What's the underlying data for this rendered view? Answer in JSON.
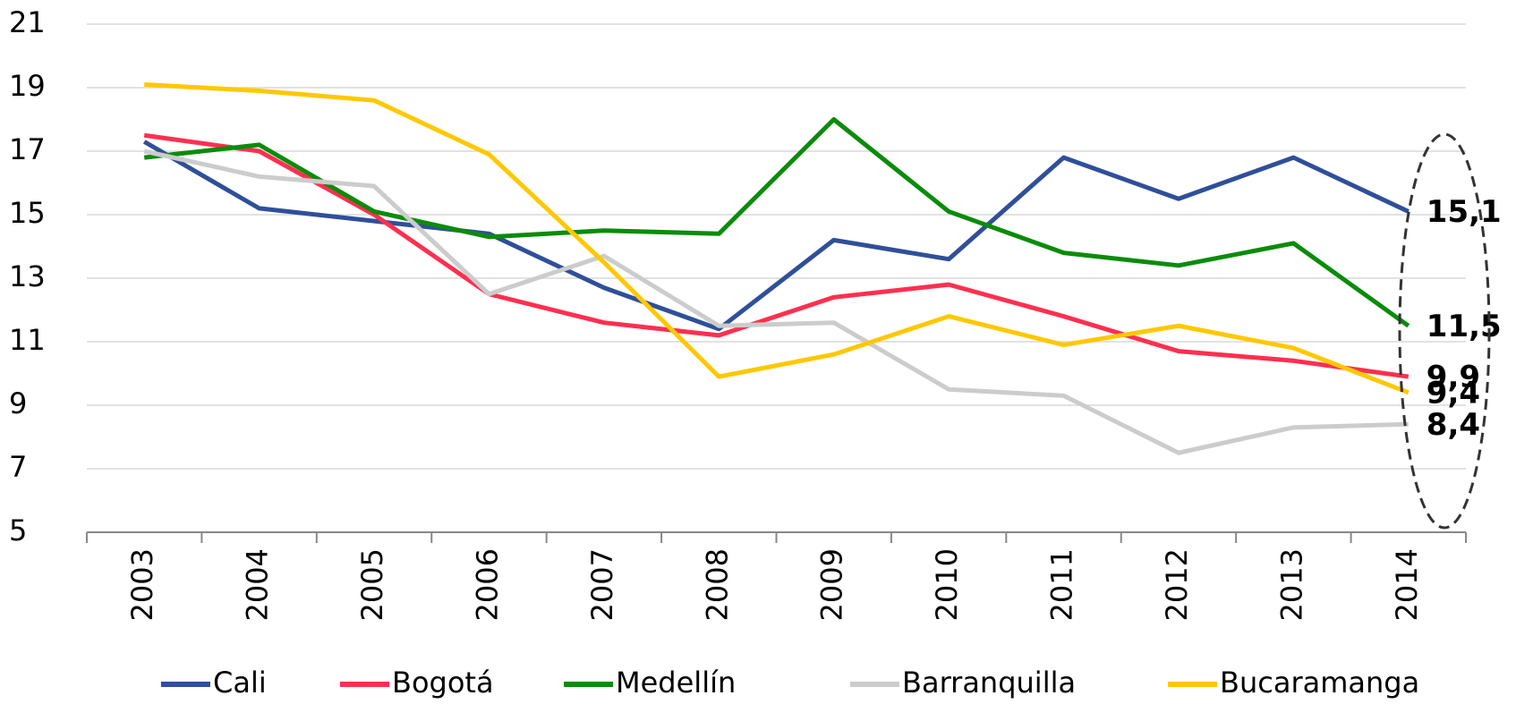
{
  "chart_data": {
    "type": "line",
    "categories": [
      "2003",
      "2004",
      "2005",
      "2006",
      "2007",
      "2008",
      "2009",
      "2010",
      "2011",
      "2012",
      "2013",
      "2014"
    ],
    "series": [
      {
        "name": "Cali",
        "color": "#2f4f9a",
        "label_color": "#0a14e6",
        "values": [
          17.3,
          15.2,
          14.8,
          14.4,
          12.7,
          11.4,
          14.2,
          13.6,
          16.8,
          15.5,
          16.8,
          15.1
        ],
        "value_labels": [
          null,
          null,
          null,
          null,
          null,
          null,
          null,
          null,
          null,
          null,
          null,
          "15,1"
        ]
      },
      {
        "name": "Bogotá",
        "color": "#ff2f4f",
        "label_color": "#f0103c",
        "values": [
          17.5,
          17.0,
          15.0,
          12.5,
          11.6,
          11.2,
          12.4,
          12.8,
          11.8,
          10.7,
          10.4,
          9.9
        ],
        "value_labels": [
          null,
          null,
          null,
          null,
          null,
          null,
          null,
          null,
          null,
          null,
          null,
          "9,9"
        ]
      },
      {
        "name": "Medellín",
        "color": "#0a8c0a",
        "label_color": "#0a8c0a",
        "values": [
          16.8,
          17.2,
          15.1,
          14.3,
          14.5,
          14.4,
          18.0,
          15.1,
          13.8,
          13.4,
          14.1,
          11.5
        ],
        "value_labels": [
          null,
          null,
          null,
          null,
          null,
          null,
          null,
          null,
          null,
          null,
          null,
          "11,5"
        ]
      },
      {
        "name": "Barranquilla",
        "color": "#cccccc",
        "label_color": "#595959",
        "values": [
          17.0,
          16.2,
          15.9,
          12.5,
          13.7,
          11.5,
          11.6,
          9.5,
          9.3,
          7.5,
          8.3,
          8.4
        ],
        "value_labels": [
          null,
          null,
          null,
          null,
          null,
          null,
          null,
          null,
          null,
          null,
          null,
          "8,4"
        ]
      },
      {
        "name": "Bucaramanga",
        "color": "#ffc800",
        "label_color": "#ffc000",
        "values": [
          19.1,
          18.9,
          18.6,
          16.9,
          13.5,
          9.9,
          10.6,
          11.8,
          10.9,
          11.5,
          10.8,
          9.4
        ],
        "value_labels": [
          null,
          null,
          null,
          null,
          null,
          null,
          null,
          null,
          null,
          null,
          null,
          "9,4"
        ]
      }
    ],
    "ylim": [
      5,
      21
    ],
    "yticks": [
      5,
      7,
      9,
      11,
      13,
      15,
      17,
      19,
      21
    ],
    "grid": true,
    "legend": "bottom"
  }
}
